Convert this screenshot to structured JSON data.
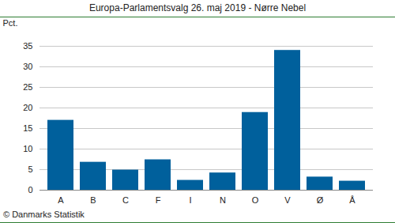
{
  "chart_data": {
    "type": "bar",
    "title": "Europa-Parlamentsvalg 26. maj 2019 - Nørre Nebel",
    "y_label": "Pct.",
    "caption": "© Danmarks Statistik",
    "categories": [
      "A",
      "B",
      "C",
      "F",
      "I",
      "N",
      "O",
      "V",
      "Ø",
      "Å"
    ],
    "values": [
      17.0,
      6.8,
      4.9,
      7.4,
      2.4,
      4.2,
      18.9,
      34.0,
      3.2,
      2.2
    ],
    "color": "#00609c",
    "ylim": [
      0,
      35
    ],
    "yticks": [
      0,
      5,
      10,
      15,
      20,
      25,
      30,
      35
    ],
    "grid": true
  }
}
